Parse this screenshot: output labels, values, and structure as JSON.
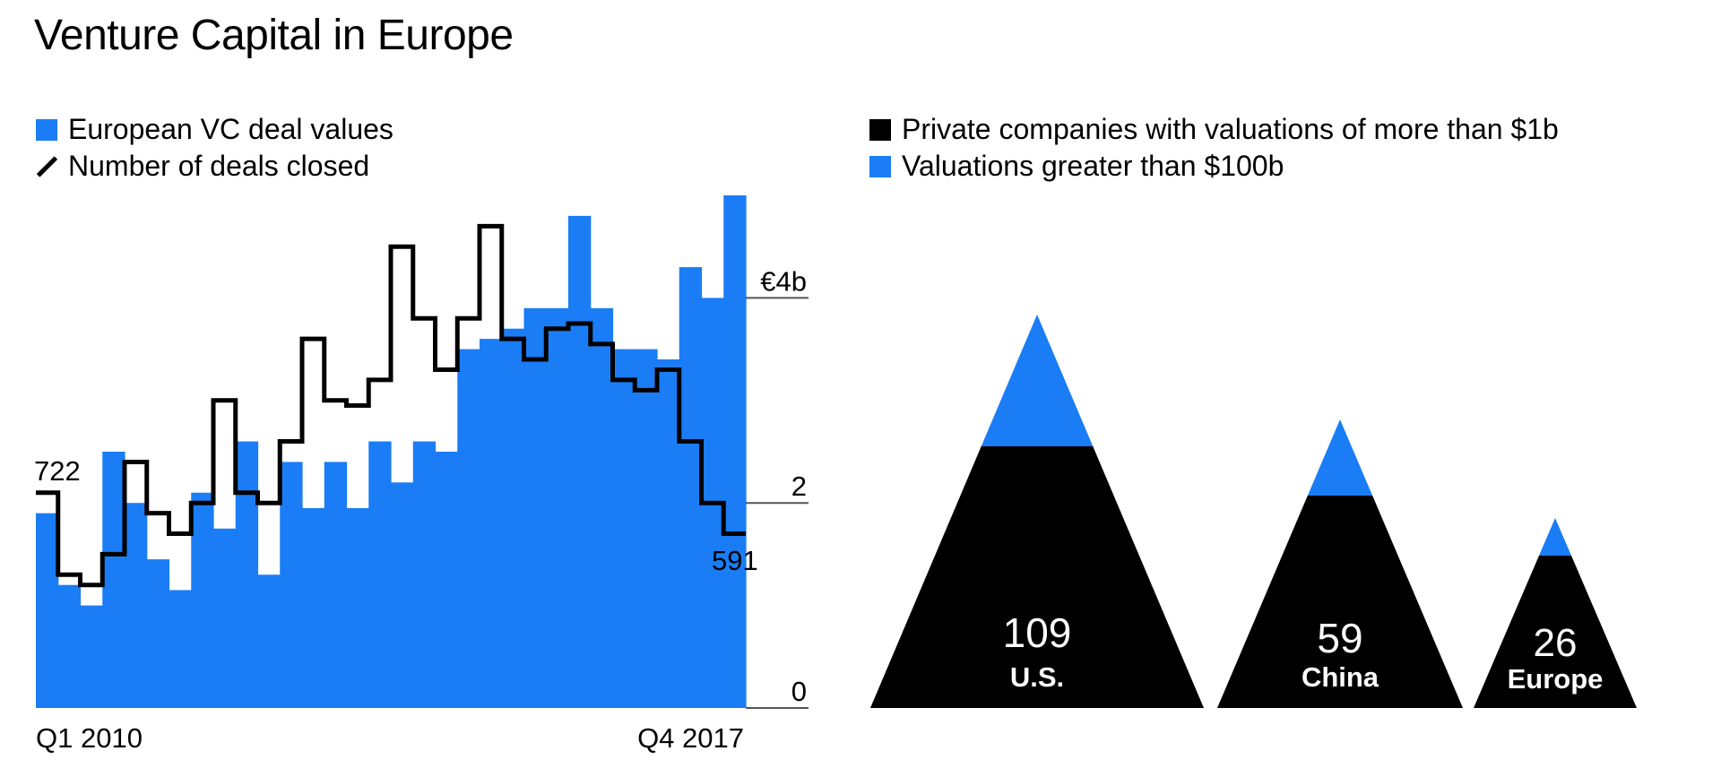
{
  "title": "Venture Capital in Europe",
  "colors": {
    "blue": "#1a7df5",
    "black": "#000000"
  },
  "legend_left": {
    "values_label": "European VC deal values",
    "deals_label": "Number of deals closed"
  },
  "legend_right": {
    "unicorns_label": "Private companies with valuations of more than $1b",
    "high_label": "Valuations greater than $100b"
  },
  "chart_data": [
    {
      "type": "bar+step-line",
      "title": "Venture Capital in Europe",
      "x_start_label": "Q1 2010",
      "x_end_label": "Q4 2017",
      "quarters": 32,
      "ylim": [
        0,
        5
      ],
      "y_ticks": [
        0,
        2,
        4
      ],
      "y_tick_labels": [
        "0",
        "2",
        "€4b"
      ],
      "series": [
        {
          "name": "European VC deal values",
          "unit": "€b",
          "values": [
            1.9,
            1.2,
            1.0,
            2.5,
            2.0,
            1.45,
            1.15,
            2.1,
            1.75,
            2.6,
            1.3,
            2.4,
            1.95,
            2.4,
            1.95,
            2.6,
            2.2,
            2.6,
            2.5,
            3.5,
            3.6,
            3.7,
            3.9,
            3.9,
            4.8,
            3.9,
            3.5,
            3.5,
            3.4,
            4.3,
            4.0,
            5.0
          ]
        },
        {
          "name": "Number of deals closed",
          "start_label": "722",
          "end_label": "591",
          "values": [
            2.1,
            1.3,
            1.2,
            1.5,
            2.4,
            1.9,
            1.7,
            2.0,
            3.0,
            2.1,
            2.0,
            2.6,
            3.6,
            3.0,
            2.95,
            3.2,
            4.5,
            3.8,
            3.3,
            3.8,
            4.7,
            3.6,
            3.4,
            3.7,
            3.75,
            3.55,
            3.2,
            3.1,
            3.3,
            2.6,
            2.0,
            1.7
          ]
        }
      ]
    },
    {
      "type": "pictogram",
      "title": "Private companies with valuations of more than $1b",
      "units": "companies",
      "categories": [
        "U.S.",
        "China",
        "Europe"
      ],
      "values": [
        109,
        59,
        26
      ],
      "value_labels": [
        "109",
        "59",
        "26"
      ],
      "series": [
        {
          "name": "Private companies with valuations of more than $1b",
          "values": [
            109,
            59,
            26
          ]
        },
        {
          "name": "Valuations greater than $100b",
          "values": [
            "",
            "",
            ""
          ]
        }
      ]
    }
  ]
}
